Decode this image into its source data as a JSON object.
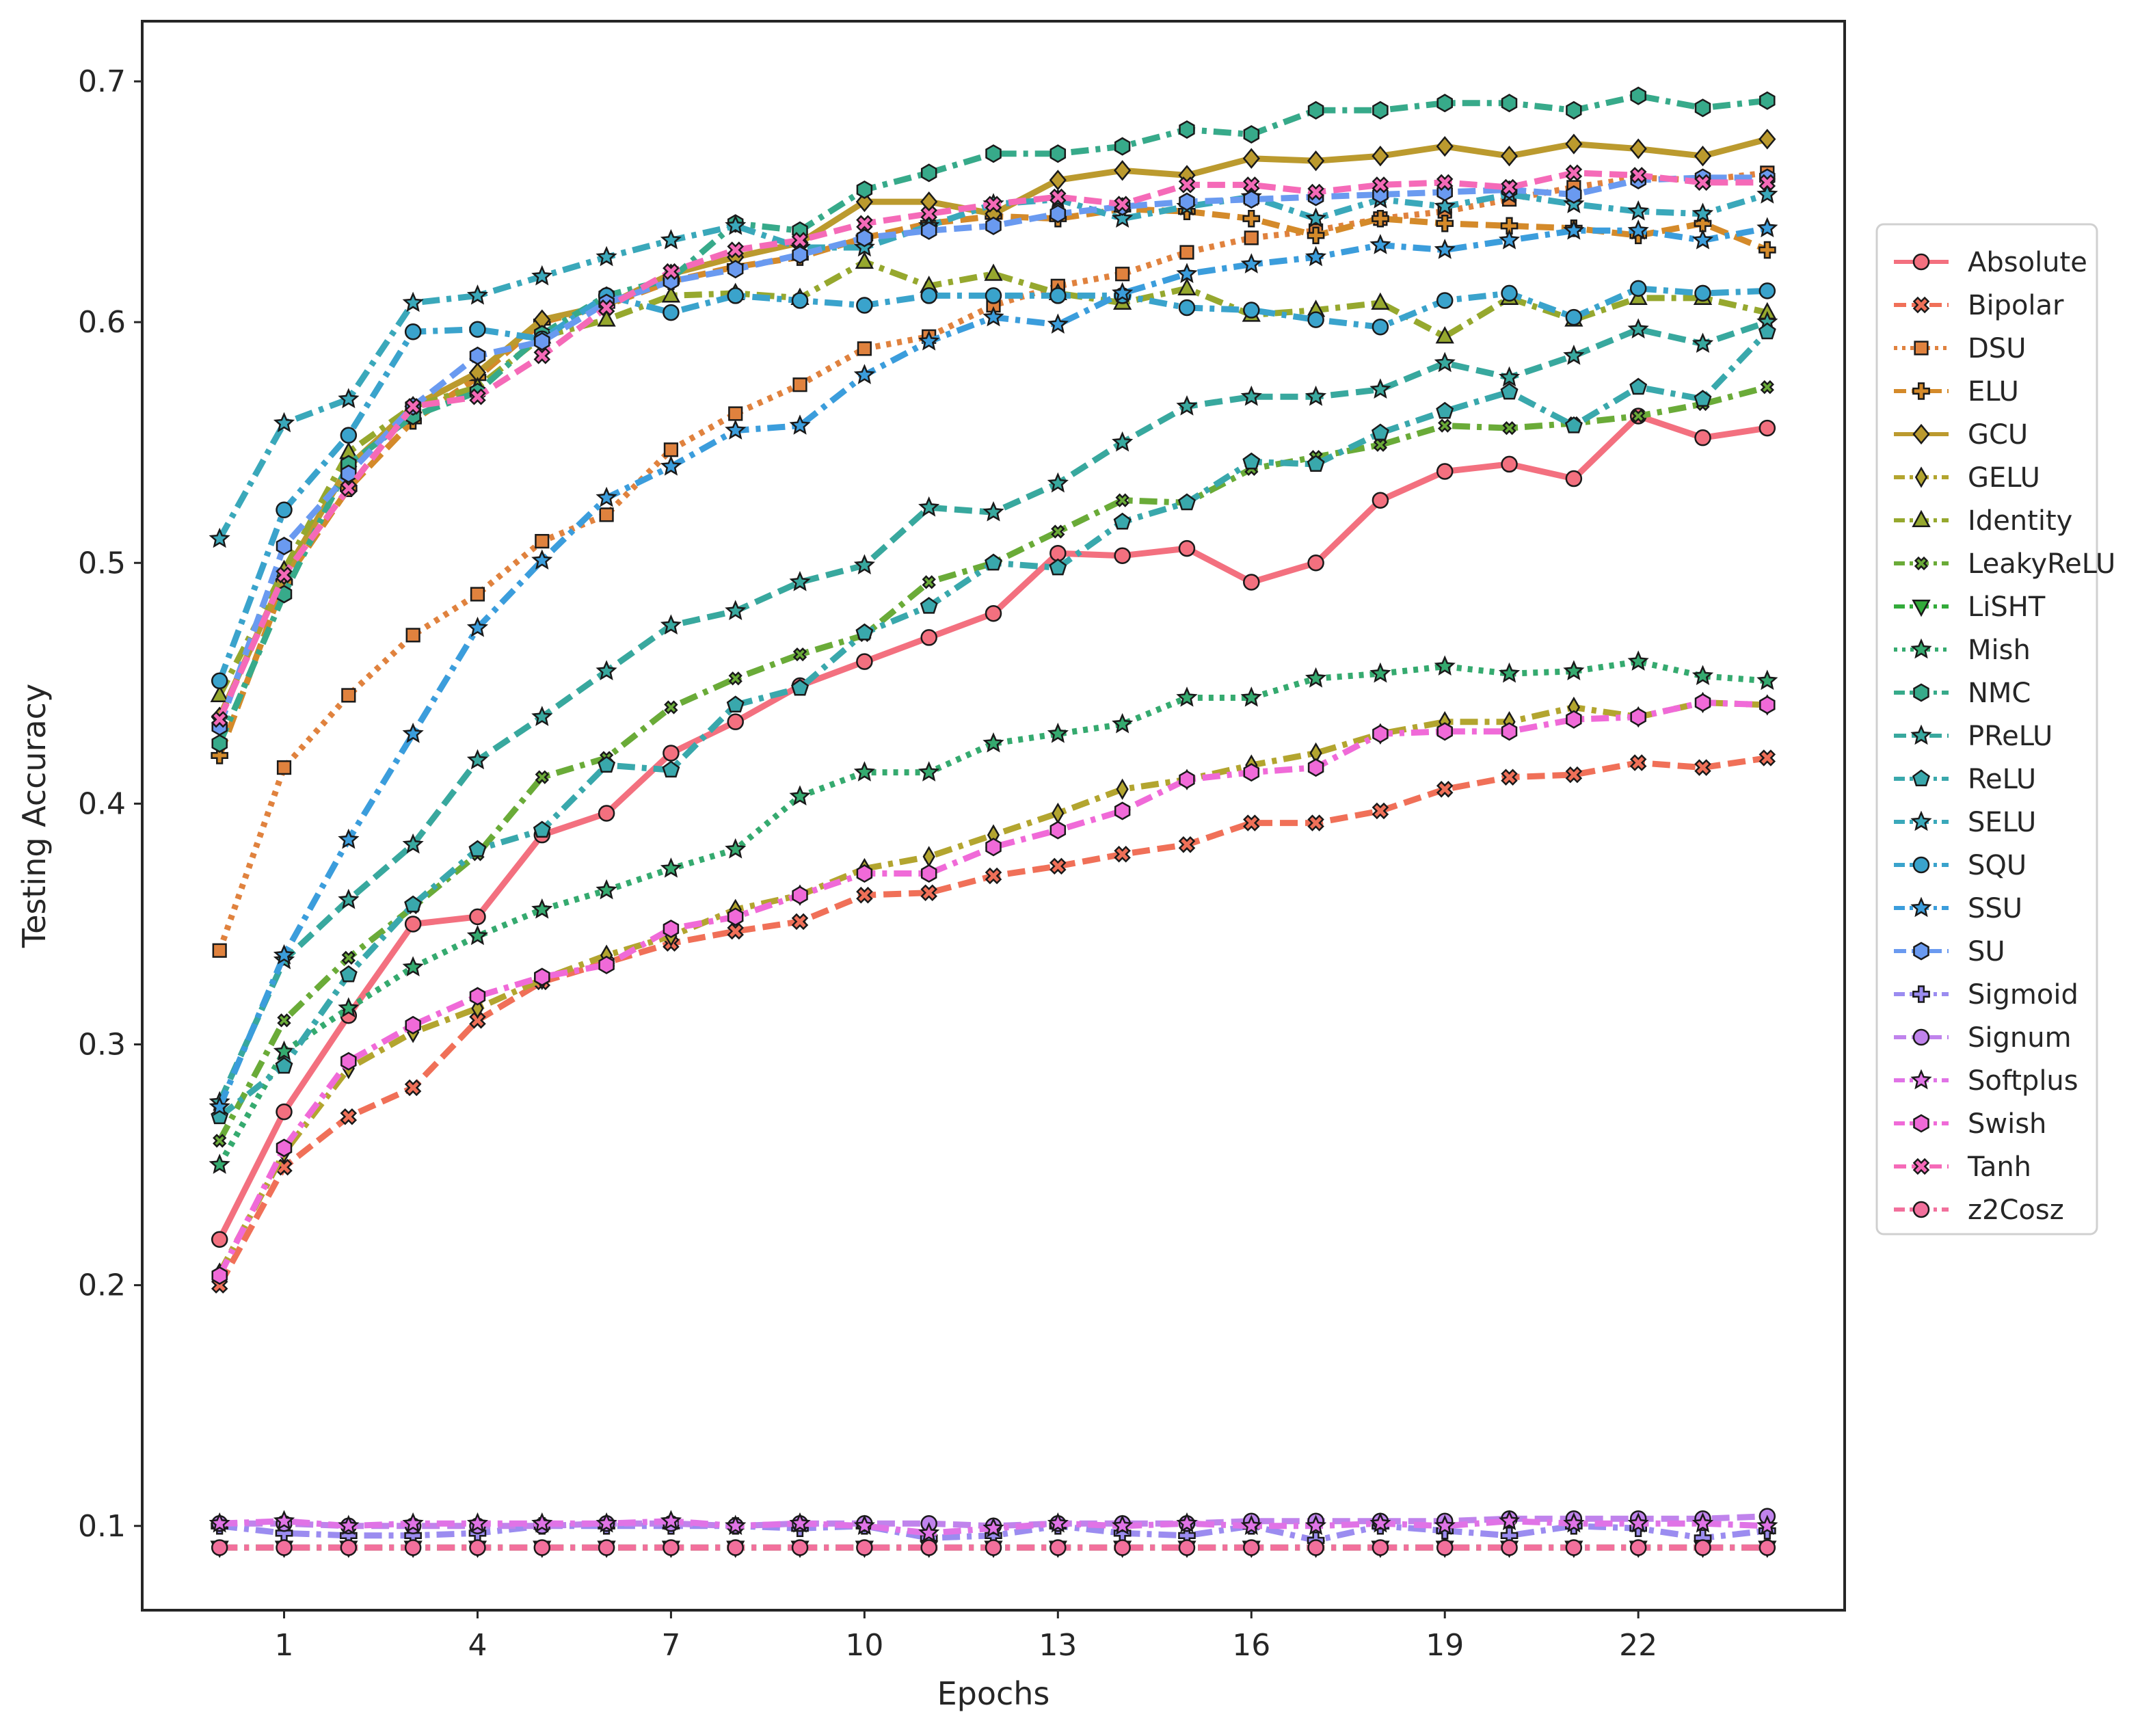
{
  "chart_data": {
    "type": "line",
    "xlabel": "Epochs",
    "ylabel": "Testing Accuracy",
    "x": [
      0,
      1,
      2,
      3,
      4,
      5,
      6,
      7,
      8,
      9,
      10,
      11,
      12,
      13,
      14,
      15,
      16,
      17,
      18,
      19,
      20,
      21,
      22,
      23,
      24
    ],
    "xlim": [
      -1.2,
      25.2
    ],
    "ylim": [
      0.065,
      0.725
    ],
    "xticks": [
      1,
      4,
      7,
      10,
      13,
      16,
      19,
      22
    ],
    "yticks": [
      0.1,
      0.2,
      0.3,
      0.4,
      0.5,
      0.6,
      0.7
    ],
    "ytick_labels": [
      "0.1",
      "0.2",
      "0.3",
      "0.4",
      "0.5",
      "0.6",
      "0.7"
    ],
    "grid": false,
    "legend_position": "right-outside",
    "series": [
      {
        "name": "Absolute",
        "color": "#f3707f",
        "dash": "solid",
        "marker": "circle",
        "values": [
          0.219,
          0.272,
          0.312,
          0.35,
          0.353,
          0.387,
          0.396,
          0.421,
          0.434,
          0.449,
          0.459,
          0.469,
          0.479,
          0.504,
          0.503,
          0.506,
          0.492,
          0.5,
          0.526,
          0.538,
          0.541,
          0.535,
          0.561,
          0.552,
          0.556
        ]
      },
      {
        "name": "Bipolar",
        "color": "#f07058",
        "dash": "dash",
        "marker": "x",
        "values": [
          0.2,
          0.249,
          0.27,
          0.282,
          0.31,
          0.326,
          0.334,
          0.342,
          0.347,
          0.351,
          0.362,
          0.363,
          0.37,
          0.374,
          0.379,
          0.383,
          0.392,
          0.392,
          0.397,
          0.406,
          0.411,
          0.412,
          0.417,
          0.415,
          0.419
        ]
      },
      {
        "name": "DSU",
        "color": "#e0823e",
        "dash": "dot",
        "marker": "square",
        "values": [
          0.339,
          0.415,
          0.445,
          0.47,
          0.487,
          0.509,
          0.52,
          0.547,
          0.562,
          0.574,
          0.589,
          0.594,
          0.607,
          0.615,
          0.62,
          0.629,
          0.635,
          0.638,
          0.643,
          0.646,
          0.651,
          0.656,
          0.66,
          0.659,
          0.662
        ]
      },
      {
        "name": "ELU",
        "color": "#d48a2a",
        "dash": "dash",
        "marker": "plus",
        "values": [
          0.42,
          0.492,
          0.531,
          0.559,
          0.577,
          0.6,
          0.607,
          0.617,
          0.623,
          0.627,
          0.635,
          0.641,
          0.644,
          0.643,
          0.647,
          0.646,
          0.643,
          0.636,
          0.643,
          0.641,
          0.64,
          0.639,
          0.636,
          0.641,
          0.63
        ]
      },
      {
        "name": "GCU",
        "color": "#bb9a2e",
        "dash": "solid",
        "marker": "diamond",
        "values": [
          0.436,
          0.495,
          0.54,
          0.565,
          0.579,
          0.601,
          0.607,
          0.62,
          0.627,
          0.633,
          0.65,
          0.65,
          0.645,
          0.659,
          0.663,
          0.661,
          0.668,
          0.667,
          0.669,
          0.673,
          0.669,
          0.674,
          0.672,
          0.669,
          0.676
        ]
      },
      {
        "name": "GELU",
        "color": "#b3a52f",
        "dash": "dashdot",
        "marker": "thin-diamond",
        "values": [
          0.205,
          0.255,
          0.29,
          0.305,
          0.315,
          0.327,
          0.337,
          0.345,
          0.356,
          0.362,
          0.373,
          0.378,
          0.387,
          0.396,
          0.406,
          0.41,
          0.416,
          0.421,
          0.429,
          0.434,
          0.434,
          0.44,
          0.436,
          0.442,
          0.441
        ]
      },
      {
        "name": "Identity",
        "color": "#96a82e",
        "dash": "dashdot",
        "marker": "triangle-up",
        "values": [
          0.445,
          0.497,
          0.546,
          0.565,
          0.573,
          0.594,
          0.601,
          0.611,
          0.612,
          0.61,
          0.625,
          0.615,
          0.62,
          0.612,
          0.608,
          0.614,
          0.603,
          0.605,
          0.608,
          0.594,
          0.61,
          0.601,
          0.61,
          0.61,
          0.604
        ]
      },
      {
        "name": "LeakyReLU",
        "color": "#6aab38",
        "dash": "dashdot",
        "marker": "x-small",
        "values": [
          0.26,
          0.31,
          0.336,
          0.357,
          0.379,
          0.411,
          0.419,
          0.44,
          0.452,
          0.462,
          0.47,
          0.492,
          0.5,
          0.513,
          0.526,
          0.525,
          0.539,
          0.544,
          0.549,
          0.557,
          0.556,
          0.558,
          0.561,
          0.566,
          0.573
        ]
      },
      {
        "name": "LiSHT",
        "color": "#33ab3a",
        "dash": "dashdot",
        "marker": "triangle-down",
        "values": [
          0.091,
          0.091,
          0.091,
          0.091,
          0.091,
          0.091,
          0.091,
          0.091,
          0.091,
          0.091,
          0.091,
          0.091,
          0.091,
          0.091,
          0.091,
          0.091,
          0.091,
          0.091,
          0.091,
          0.091,
          0.091,
          0.091,
          0.091,
          0.091,
          0.091
        ]
      },
      {
        "name": "Mish",
        "color": "#35aa6f",
        "dash": "dot",
        "marker": "star",
        "values": [
          0.25,
          0.297,
          0.315,
          0.332,
          0.345,
          0.356,
          0.364,
          0.373,
          0.381,
          0.403,
          0.413,
          0.413,
          0.425,
          0.429,
          0.433,
          0.444,
          0.444,
          0.452,
          0.454,
          0.457,
          0.454,
          0.455,
          0.459,
          0.453,
          0.451
        ]
      },
      {
        "name": "NMC",
        "color": "#37aa8a",
        "dash": "dashdot",
        "marker": "hexagon",
        "values": [
          0.425,
          0.487,
          0.541,
          0.561,
          0.571,
          0.595,
          0.611,
          0.618,
          0.641,
          0.638,
          0.655,
          0.662,
          0.67,
          0.67,
          0.673,
          0.68,
          0.678,
          0.688,
          0.688,
          0.691,
          0.691,
          0.688,
          0.694,
          0.689,
          0.692
        ]
      },
      {
        "name": "PReLU",
        "color": "#38a89e",
        "dash": "dash",
        "marker": "star",
        "values": [
          0.276,
          0.335,
          0.36,
          0.383,
          0.418,
          0.436,
          0.455,
          0.474,
          0.48,
          0.492,
          0.499,
          0.523,
          0.521,
          0.533,
          0.55,
          0.565,
          0.569,
          0.569,
          0.572,
          0.583,
          0.577,
          0.586,
          0.597,
          0.591,
          0.6
        ]
      },
      {
        "name": "ReLU",
        "color": "#39a8ac",
        "dash": "dashdot",
        "marker": "pentagon",
        "values": [
          0.27,
          0.291,
          0.329,
          0.358,
          0.381,
          0.389,
          0.416,
          0.414,
          0.441,
          0.448,
          0.471,
          0.482,
          0.5,
          0.498,
          0.517,
          0.525,
          0.542,
          0.541,
          0.554,
          0.563,
          0.571,
          0.557,
          0.573,
          0.568,
          0.596
        ]
      },
      {
        "name": "SELU",
        "color": "#3aa8ba",
        "dash": "dashdot",
        "marker": "star",
        "values": [
          0.51,
          0.558,
          0.568,
          0.608,
          0.611,
          0.619,
          0.627,
          0.634,
          0.64,
          0.631,
          0.631,
          0.64,
          0.649,
          0.651,
          0.643,
          0.648,
          0.652,
          0.643,
          0.651,
          0.648,
          0.653,
          0.649,
          0.646,
          0.645,
          0.653
        ]
      },
      {
        "name": "SQU",
        "color": "#3aa3cc",
        "dash": "dashdot",
        "marker": "circle",
        "values": [
          0.451,
          0.522,
          0.553,
          0.596,
          0.597,
          0.593,
          0.611,
          0.604,
          0.611,
          0.609,
          0.607,
          0.611,
          0.611,
          0.611,
          0.611,
          0.606,
          0.605,
          0.601,
          0.598,
          0.609,
          0.612,
          0.602,
          0.614,
          0.612,
          0.613
        ]
      },
      {
        "name": "SSU",
        "color": "#3b9ddc",
        "dash": "dashdot",
        "marker": "star",
        "values": [
          0.274,
          0.337,
          0.385,
          0.429,
          0.473,
          0.501,
          0.527,
          0.54,
          0.555,
          0.557,
          0.578,
          0.592,
          0.602,
          0.599,
          0.612,
          0.62,
          0.624,
          0.627,
          0.632,
          0.63,
          0.634,
          0.638,
          0.638,
          0.634,
          0.639
        ]
      },
      {
        "name": "SU",
        "color": "#6a9af0",
        "dash": "dash",
        "marker": "hexagon",
        "values": [
          0.432,
          0.507,
          0.537,
          0.565,
          0.586,
          0.592,
          0.608,
          0.617,
          0.622,
          0.628,
          0.635,
          0.638,
          0.64,
          0.645,
          0.648,
          0.65,
          0.651,
          0.652,
          0.653,
          0.654,
          0.655,
          0.653,
          0.659,
          0.66,
          0.66
        ]
      },
      {
        "name": "Sigmoid",
        "color": "#9b8cf0",
        "dash": "dashdot",
        "marker": "plus",
        "values": [
          0.1,
          0.097,
          0.096,
          0.096,
          0.097,
          0.1,
          0.1,
          0.1,
          0.1,
          0.099,
          0.1,
          0.095,
          0.096,
          0.1,
          0.097,
          0.096,
          0.1,
          0.094,
          0.1,
          0.098,
          0.096,
          0.1,
          0.099,
          0.095,
          0.098
        ]
      },
      {
        "name": "Signum",
        "color": "#c083ec",
        "dash": "dash",
        "marker": "circle",
        "values": [
          0.101,
          0.101,
          0.1,
          0.1,
          0.1,
          0.1,
          0.101,
          0.101,
          0.1,
          0.101,
          0.101,
          0.101,
          0.1,
          0.101,
          0.101,
          0.101,
          0.102,
          0.102,
          0.102,
          0.102,
          0.103,
          0.103,
          0.103,
          0.103,
          0.104
        ]
      },
      {
        "name": "Softplus",
        "color": "#e073e6",
        "dash": "dashdot",
        "marker": "star",
        "values": [
          0.101,
          0.102,
          0.1,
          0.101,
          0.101,
          0.101,
          0.101,
          0.102,
          0.1,
          0.101,
          0.1,
          0.097,
          0.099,
          0.101,
          0.1,
          0.101,
          0.1,
          0.1,
          0.101,
          0.1,
          0.102,
          0.101,
          0.101,
          0.101,
          0.1
        ]
      },
      {
        "name": "Swish",
        "color": "#f06ad8",
        "dash": "dashdot",
        "marker": "hexagon",
        "values": [
          0.204,
          0.257,
          0.293,
          0.308,
          0.32,
          0.328,
          0.333,
          0.348,
          0.353,
          0.362,
          0.371,
          0.371,
          0.382,
          0.389,
          0.397,
          0.41,
          0.413,
          0.415,
          0.429,
          0.43,
          0.43,
          0.435,
          0.436,
          0.442,
          0.441
        ]
      },
      {
        "name": "Tanh",
        "color": "#f56ab8",
        "dash": "dash",
        "marker": "x",
        "values": [
          0.435,
          0.495,
          0.531,
          0.565,
          0.569,
          0.586,
          0.606,
          0.621,
          0.63,
          0.634,
          0.641,
          0.645,
          0.649,
          0.652,
          0.649,
          0.657,
          0.657,
          0.654,
          0.657,
          0.658,
          0.656,
          0.662,
          0.661,
          0.658,
          0.658
        ]
      },
      {
        "name": "z2Cosz",
        "color": "#f2709c",
        "dash": "dashdot",
        "marker": "circle",
        "values": [
          0.091,
          0.091,
          0.091,
          0.091,
          0.091,
          0.091,
          0.091,
          0.091,
          0.091,
          0.091,
          0.091,
          0.091,
          0.091,
          0.091,
          0.091,
          0.091,
          0.091,
          0.091,
          0.091,
          0.091,
          0.091,
          0.091,
          0.091,
          0.091,
          0.091
        ]
      }
    ]
  }
}
